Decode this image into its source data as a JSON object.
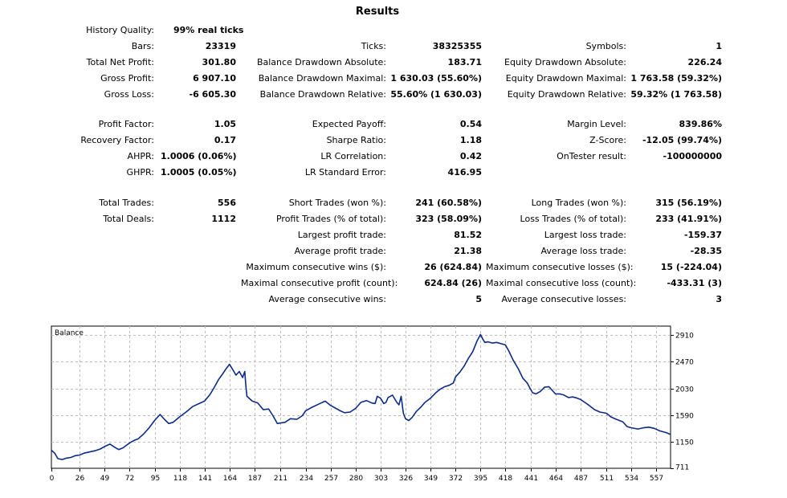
{
  "title": "Results",
  "history_quality": {
    "label": "History Quality:",
    "value": "99% real ticks"
  },
  "col1": [
    {
      "label": "Bars:",
      "value": "23319"
    },
    {
      "label": "Total Net Profit:",
      "value": "301.80"
    },
    {
      "label": "Gross Profit:",
      "value": "6 907.10"
    },
    {
      "label": "Gross Loss:",
      "value": "-6 605.30"
    },
    {
      "label": "Profit Factor:",
      "value": "1.05"
    },
    {
      "label": "Recovery Factor:",
      "value": "0.17"
    },
    {
      "label": "AHPR:",
      "value": "1.0006 (0.06%)"
    },
    {
      "label": "GHPR:",
      "value": "1.0005 (0.05%)"
    },
    {
      "label": "Total Trades:",
      "value": "556"
    },
    {
      "label": "Total Deals:",
      "value": "1112"
    }
  ],
  "col2": [
    {
      "label": "Ticks:",
      "value": "38325355"
    },
    {
      "label": "Balance Drawdown Absolute:",
      "value": "183.71"
    },
    {
      "label": "Balance Drawdown Maximal:",
      "value": "1 630.03 (55.60%)"
    },
    {
      "label": "Balance Drawdown Relative:",
      "value": "55.60% (1 630.03)"
    },
    {
      "label": "Expected Payoff:",
      "value": "0.54"
    },
    {
      "label": "Sharpe Ratio:",
      "value": "1.18"
    },
    {
      "label": "LR Correlation:",
      "value": "0.42"
    },
    {
      "label": "LR Standard Error:",
      "value": "416.95"
    },
    {
      "label": "Short Trades (won %):",
      "value": "241 (60.58%)"
    },
    {
      "label": "Profit Trades (% of total):",
      "value": "323 (58.09%)"
    },
    {
      "label": "Largest profit trade:",
      "value": "81.52"
    },
    {
      "label": "Average profit trade:",
      "value": "21.38"
    },
    {
      "label": "Maximum consecutive wins ($):",
      "value": "26 (624.84)"
    },
    {
      "label": "Maximal consecutive profit (count):",
      "value": "624.84 (26)"
    },
    {
      "label": "Average consecutive wins:",
      "value": "5"
    }
  ],
  "col3": [
    {
      "label": "Symbols:",
      "value": "1"
    },
    {
      "label": "Equity Drawdown Absolute:",
      "value": "226.24"
    },
    {
      "label": "Equity Drawdown Maximal:",
      "value": "1 763.58 (59.32%)"
    },
    {
      "label": "Equity Drawdown Relative:",
      "value": "59.32% (1 763.58)"
    },
    {
      "label": "Margin Level:",
      "value": "839.86%"
    },
    {
      "label": "Z-Score:",
      "value": "-12.05 (99.74%)"
    },
    {
      "label": "OnTester result:",
      "value": "-100000000"
    },
    {
      "label": "Long Trades (won %):",
      "value": "315 (56.19%)"
    },
    {
      "label": "Loss Trades (% of total):",
      "value": "233 (41.91%)"
    },
    {
      "label": "Largest loss trade:",
      "value": "-159.37"
    },
    {
      "label": "Average loss trade:",
      "value": "-28.35"
    },
    {
      "label": "Maximum consecutive losses ($):",
      "value": "15 (-224.04)"
    },
    {
      "label": "Maximal consecutive loss (count):",
      "value": "-433.31 (3)"
    },
    {
      "label": "Average consecutive losses:",
      "value": "3"
    }
  ],
  "chart_data": {
    "type": "line",
    "title": "Balance",
    "xlabel": "",
    "ylabel": "",
    "x_ticks": [
      "0",
      "26",
      "49",
      "72",
      "95",
      "118",
      "141",
      "164",
      "187",
      "211",
      "234",
      "257",
      "280",
      "303",
      "326",
      "349",
      "372",
      "395",
      "418",
      "441",
      "464",
      "487",
      "511",
      "534",
      "557"
    ],
    "y_ticks": [
      "711",
      "1150",
      "1590",
      "2030",
      "2470",
      "2910"
    ],
    "xlim": [
      0,
      570
    ],
    "ylim": [
      711,
      3060
    ],
    "grid": true,
    "line_color": "#0b2a8a",
    "series": [
      {
        "x": [
          0,
          3,
          6,
          10,
          14,
          18,
          22,
          26,
          30,
          35,
          40,
          45,
          49,
          54,
          58,
          62,
          66,
          72,
          76,
          80,
          85,
          90,
          95,
          100,
          104,
          108,
          112,
          118,
          124,
          130,
          136,
          141,
          146,
          150,
          154,
          158,
          161,
          164,
          167,
          170,
          173,
          176,
          178,
          179,
          180,
          185,
          190,
          195,
          200,
          204,
          208,
          211,
          215,
          220,
          226,
          231,
          234,
          240,
          246,
          252,
          257,
          262,
          266,
          270,
          275,
          280,
          285,
          290,
          295,
          298,
          300,
          303,
          306,
          308,
          310,
          314,
          318,
          320,
          322,
          324,
          326,
          329,
          332,
          336,
          340,
          344,
          349,
          354,
          358,
          362,
          366,
          370,
          372,
          376,
          380,
          384,
          388,
          392,
          395,
          397,
          399,
          402,
          406,
          410,
          414,
          418,
          421,
          425,
          430,
          434,
          438,
          441,
          443,
          446,
          450,
          454,
          458,
          462,
          464,
          468,
          472,
          476,
          480,
          484,
          487,
          491,
          495,
          500,
          505,
          511,
          515,
          520,
          526,
          530,
          534,
          540,
          545,
          550,
          555,
          560,
          566,
          570
        ],
        "y": [
          1010,
          960,
          870,
          855,
          880,
          890,
          920,
          930,
          960,
          980,
          1000,
          1030,
          1070,
          1110,
          1060,
          1020,
          1050,
          1130,
          1170,
          1200,
          1280,
          1380,
          1500,
          1600,
          1520,
          1450,
          1470,
          1560,
          1640,
          1730,
          1780,
          1820,
          1930,
          2050,
          2180,
          2280,
          2360,
          2430,
          2340,
          2250,
          2310,
          2210,
          2310,
          2080,
          1900,
          1820,
          1790,
          1680,
          1690,
          1580,
          1450,
          1460,
          1470,
          1530,
          1520,
          1580,
          1660,
          1720,
          1770,
          1820,
          1750,
          1700,
          1660,
          1630,
          1640,
          1700,
          1800,
          1830,
          1790,
          1780,
          1900,
          1870,
          1780,
          1800,
          1880,
          1920,
          1800,
          1760,
          1900,
          1620,
          1530,
          1500,
          1550,
          1650,
          1720,
          1800,
          1870,
          1960,
          2020,
          2060,
          2080,
          2120,
          2220,
          2300,
          2400,
          2530,
          2640,
          2820,
          2920,
          2850,
          2790,
          2800,
          2780,
          2790,
          2770,
          2750,
          2650,
          2500,
          2350,
          2200,
          2120,
          2020,
          1960,
          1940,
          1980,
          2050,
          2060,
          1980,
          1940,
          1940,
          1920,
          1880,
          1890,
          1870,
          1850,
          1800,
          1750,
          1680,
          1640,
          1620,
          1560,
          1520,
          1480,
          1400,
          1380,
          1360,
          1380,
          1390,
          1370,
          1330,
          1300,
          1270
        ]
      }
    ]
  }
}
